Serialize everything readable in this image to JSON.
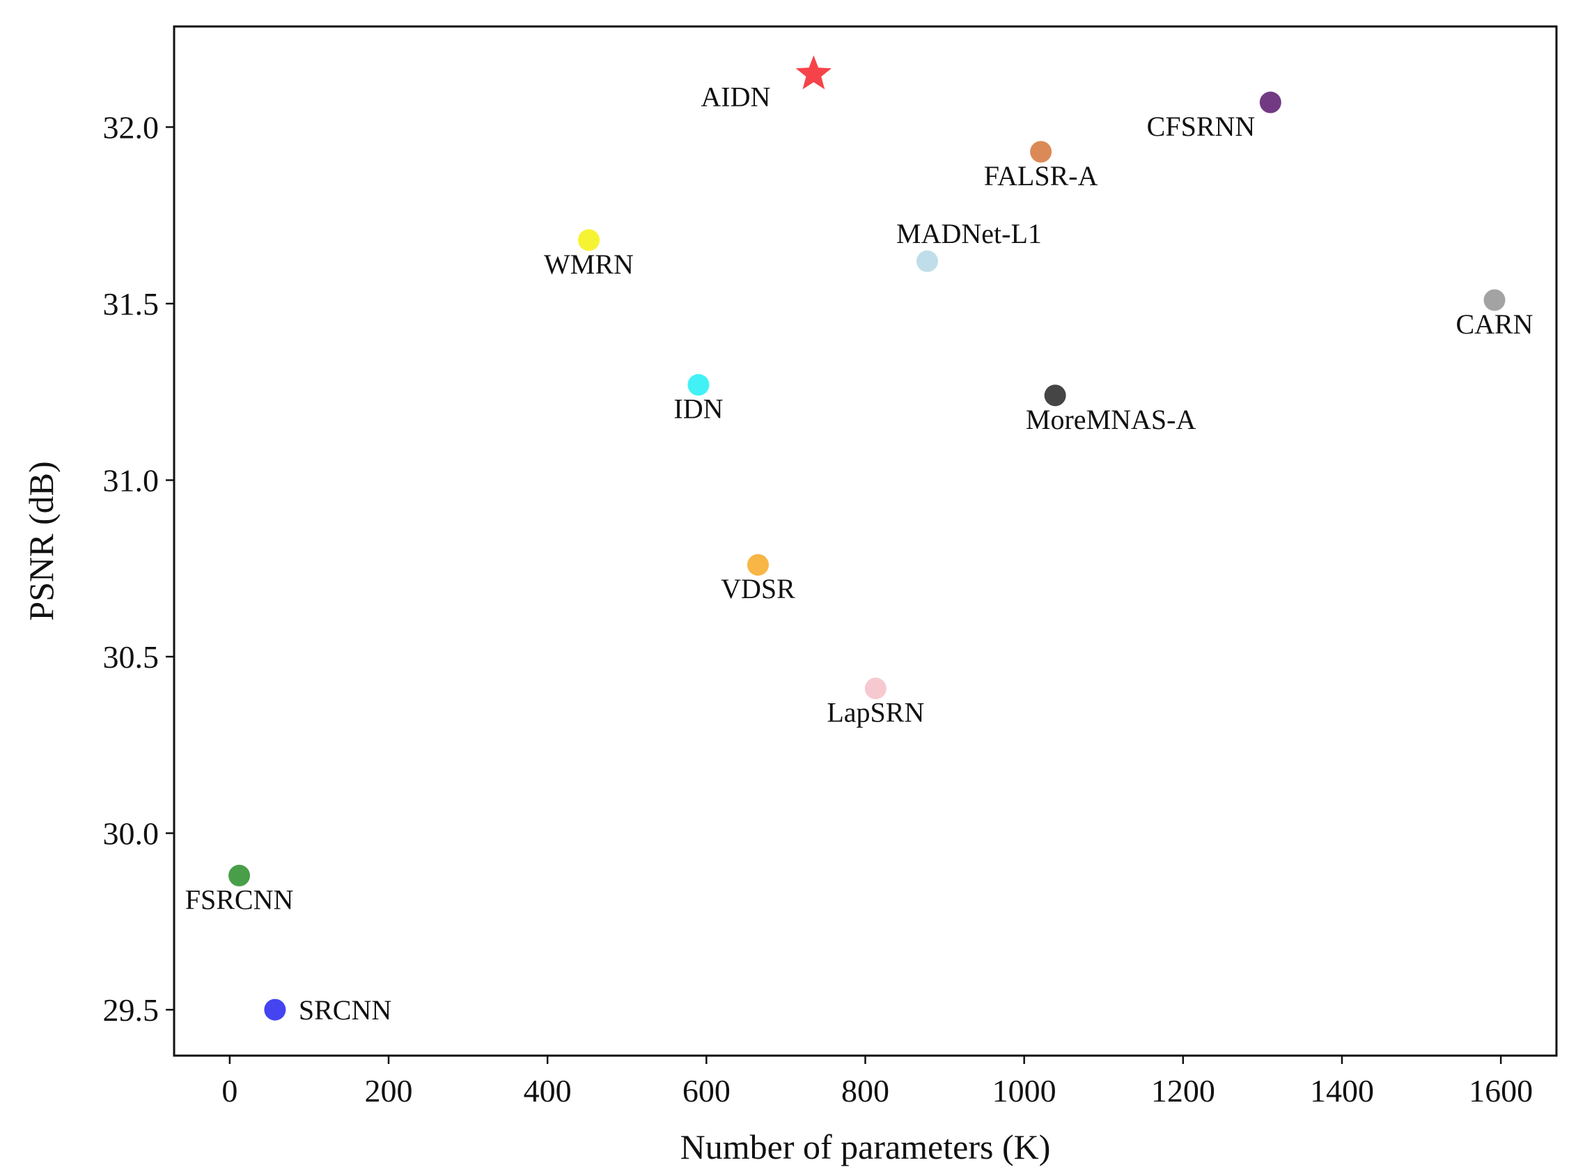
{
  "chart_data": {
    "type": "scatter",
    "title": "",
    "xlabel": "Number of parameters (K)",
    "ylabel": "PSNR (dB)",
    "xlim": [
      -70,
      1670
    ],
    "ylim": [
      29.37,
      32.285
    ],
    "xticks": [
      0,
      200,
      400,
      600,
      800,
      1000,
      1200,
      1400,
      1600
    ],
    "yticks": [
      29.5,
      30.0,
      30.5,
      31.0,
      31.5,
      32.0
    ],
    "xtick_labels": [
      "0",
      "200",
      "400",
      "600",
      "800",
      "1000",
      "1200",
      "1400",
      "1600"
    ],
    "ytick_labels": [
      "29.5",
      "30.0",
      "30.5",
      "31.0",
      "31.5",
      "32.0"
    ],
    "grid": false,
    "points": [
      {
        "name": "AIDN",
        "x": 735,
        "y": 32.15,
        "color": "#f5393f",
        "marker": "star",
        "label_position": "left-below"
      },
      {
        "name": "CFSRNN",
        "x": 1310,
        "y": 32.07,
        "color": "#6b2f7d",
        "marker": "circle",
        "label_position": "below-left"
      },
      {
        "name": "FALSR-A",
        "x": 1021,
        "y": 31.93,
        "color": "#d9844e",
        "marker": "circle",
        "label_position": "below"
      },
      {
        "name": "WMRN",
        "x": 452,
        "y": 31.68,
        "color": "#f6f227",
        "marker": "circle",
        "label_position": "below"
      },
      {
        "name": "MADNet-L1",
        "x": 878,
        "y": 31.62,
        "color": "#bcdce8",
        "marker": "circle",
        "label_position": "above-right"
      },
      {
        "name": "CARN",
        "x": 1592,
        "y": 31.51,
        "color": "#9e9e9e",
        "marker": "circle",
        "label_position": "below"
      },
      {
        "name": "IDN",
        "x": 590,
        "y": 31.27,
        "color": "#37f0f4",
        "marker": "circle",
        "label_position": "below"
      },
      {
        "name": "MoreMNAS-A",
        "x": 1039,
        "y": 31.24,
        "color": "#3b3b3b",
        "marker": "circle",
        "label_position": "below-right"
      },
      {
        "name": "VDSR",
        "x": 665,
        "y": 30.76,
        "color": "#f7b23b",
        "marker": "circle",
        "label_position": "below"
      },
      {
        "name": "LapSRN",
        "x": 813,
        "y": 30.41,
        "color": "#f6c6cf",
        "marker": "circle",
        "label_position": "below"
      },
      {
        "name": "FSRCNN",
        "x": 12,
        "y": 29.88,
        "color": "#3f993f",
        "marker": "circle",
        "label_position": "below"
      },
      {
        "name": "SRCNN",
        "x": 57,
        "y": 29.5,
        "color": "#3a3af0",
        "marker": "circle",
        "label_position": "right"
      }
    ]
  }
}
